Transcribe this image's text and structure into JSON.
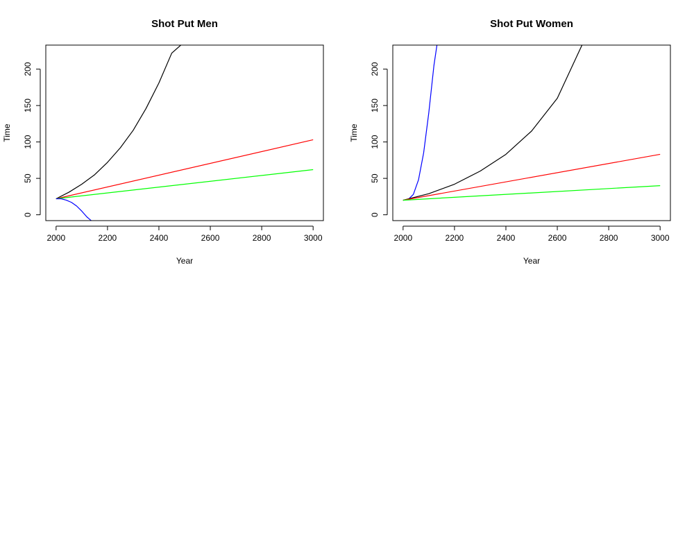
{
  "colors": {
    "black_series": "#000000",
    "red_series": "#ff0000",
    "green_series": "#00ff00",
    "blue_series": "#0000ff",
    "axis": "#000000",
    "background": "#ffffff"
  },
  "chart_data": [
    {
      "type": "line",
      "title": "Shot Put Men",
      "xlabel": "Year",
      "ylabel": "Time",
      "xlim": [
        1960,
        3040
      ],
      "ylim": [
        -8,
        233
      ],
      "xticks": [
        2000,
        2200,
        2400,
        2600,
        2800,
        3000
      ],
      "xtick_labels": [
        "2000",
        "2200",
        "2400",
        "2600",
        "2800",
        "3000"
      ],
      "yticks": [
        0,
        50,
        100,
        150,
        200
      ],
      "ytick_labels": [
        "0",
        "50",
        "100",
        "150",
        "200"
      ],
      "grid": false,
      "legend": "none",
      "series": [
        {
          "color": "#000000",
          "x": [
            2000,
            2050,
            2100,
            2150,
            2200,
            2250,
            2300,
            2350,
            2400,
            2450,
            2495
          ],
          "y": [
            22,
            31,
            42,
            55,
            72,
            92,
            116,
            146,
            181,
            222,
            236
          ]
        },
        {
          "color": "#ff0000",
          "x": [
            2000,
            3000
          ],
          "y": [
            22,
            103
          ]
        },
        {
          "color": "#00ff00",
          "x": [
            2000,
            3000
          ],
          "y": [
            22,
            62
          ]
        },
        {
          "color": "#0000ff",
          "x": [
            2000,
            2020,
            2040,
            2060,
            2080,
            2100,
            2120,
            2140
          ],
          "y": [
            22,
            22,
            20,
            17,
            12,
            5,
            -3,
            -9
          ]
        }
      ]
    },
    {
      "type": "line",
      "title": "Shot Put Women",
      "xlabel": "Year",
      "ylabel": "Time",
      "xlim": [
        1960,
        3040
      ],
      "ylim": [
        -8,
        233
      ],
      "xticks": [
        2000,
        2200,
        2400,
        2600,
        2800,
        3000
      ],
      "xtick_labels": [
        "2000",
        "2200",
        "2400",
        "2600",
        "2800",
        "3000"
      ],
      "yticks": [
        0,
        50,
        100,
        150,
        200
      ],
      "ytick_labels": [
        "0",
        "50",
        "100",
        "150",
        "200"
      ],
      "grid": false,
      "legend": "none",
      "series": [
        {
          "color": "#0000ff",
          "x": [
            2000,
            2020,
            2040,
            2060,
            2080,
            2100,
            2120,
            2133
          ],
          "y": [
            20,
            21,
            28,
            48,
            85,
            140,
            205,
            236
          ]
        },
        {
          "color": "#000000",
          "x": [
            2000,
            2100,
            2200,
            2300,
            2400,
            2500,
            2600,
            2700
          ],
          "y": [
            20,
            29,
            42,
            60,
            83,
            115,
            160,
            236
          ]
        },
        {
          "color": "#ff0000",
          "x": [
            2000,
            3000
          ],
          "y": [
            20,
            83
          ]
        },
        {
          "color": "#00ff00",
          "x": [
            2000,
            3000
          ],
          "y": [
            20,
            40
          ]
        }
      ]
    }
  ]
}
